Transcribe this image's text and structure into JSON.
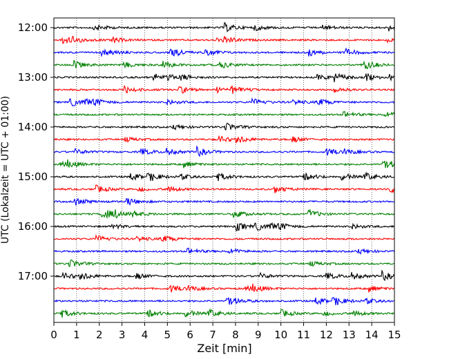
{
  "chart_data": {
    "type": "line",
    "chart_kind": "helicorder (seismogram drum plot)",
    "title": "",
    "xlabel": "Zeit  [min]",
    "ylabel": "UTC (Lokalzeit = UTC + 01:00)",
    "xlim": [
      0,
      15
    ],
    "x_ticks": [
      "0",
      "1",
      "2",
      "3",
      "4",
      "5",
      "6",
      "7",
      "8",
      "9",
      "10",
      "11",
      "12",
      "13",
      "14",
      "15"
    ],
    "y_tick_labels": [
      "12:00",
      "13:00",
      "14:00",
      "15:00",
      "16:00",
      "17:00"
    ],
    "trace_start_times": [
      "12:00",
      "12:15",
      "12:30",
      "12:45",
      "13:00",
      "13:15",
      "13:30",
      "13:45",
      "14:00",
      "14:15",
      "14:30",
      "14:45",
      "15:00",
      "15:15",
      "15:30",
      "15:45",
      "16:00",
      "16:15",
      "16:30",
      "16:45",
      "17:00",
      "17:15",
      "17:30",
      "17:45"
    ],
    "trace_colors": [
      "#000000",
      "#ff0000",
      "#0000ff",
      "#008000"
    ],
    "grid": "vertical dotted lines at each minute",
    "legend": "none"
  }
}
